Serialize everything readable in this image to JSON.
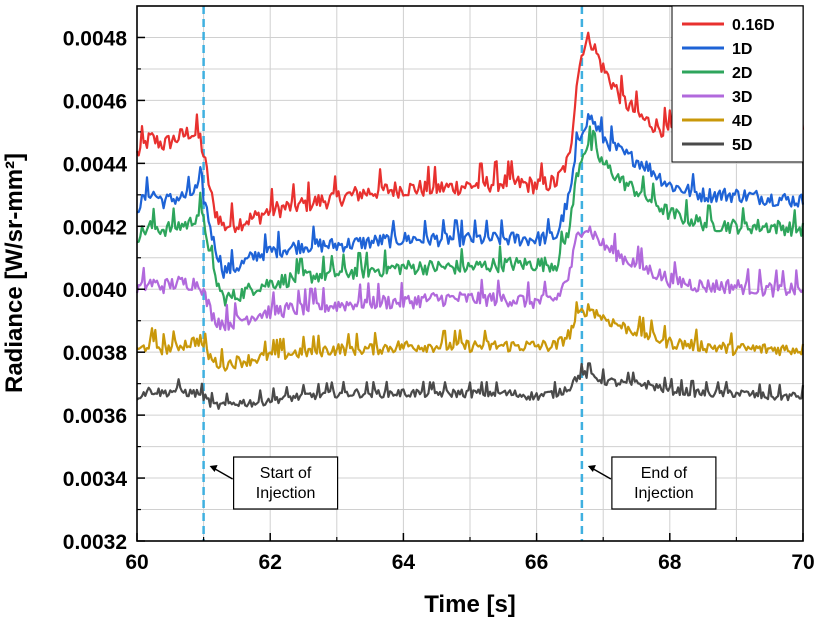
{
  "chart_data": {
    "type": "line",
    "xlabel": "Time [s]",
    "ylabel": "Radiance [W/sr-mm²]",
    "xlim": [
      60,
      70
    ],
    "ylim": [
      0.0032,
      0.0049
    ],
    "xticks": [
      "60",
      "62",
      "64",
      "66",
      "68",
      "70"
    ],
    "yticks": [
      "0.0032",
      "0.0034",
      "0.0036",
      "0.0038",
      "0.0040",
      "0.0042",
      "0.0044",
      "0.0046",
      "0.0048"
    ],
    "grid": true,
    "legend_position": "top-right",
    "markers": [
      {
        "x": 61.0,
        "label_lines": [
          "Start of",
          "Injection"
        ],
        "color": "#3fb0e0"
      },
      {
        "x": 66.68,
        "label_lines": [
          "End of",
          "Injection"
        ],
        "color": "#3fb0e0"
      }
    ],
    "series": [
      {
        "name": "0.16D",
        "color": "#e8312f",
        "points": [
          [
            60.0,
            0.00443
          ],
          [
            60.2,
            0.00448
          ],
          [
            60.4,
            0.00446
          ],
          [
            60.6,
            0.00448
          ],
          [
            60.8,
            0.0045
          ],
          [
            60.95,
            0.00448
          ],
          [
            61.05,
            0.00437
          ],
          [
            61.15,
            0.00426
          ],
          [
            61.3,
            0.0042
          ],
          [
            61.5,
            0.00421
          ],
          [
            61.8,
            0.00423
          ],
          [
            62.0,
            0.00425
          ],
          [
            62.5,
            0.00427
          ],
          [
            63.0,
            0.00429
          ],
          [
            63.5,
            0.00431
          ],
          [
            64.0,
            0.00432
          ],
          [
            64.5,
            0.00432
          ],
          [
            65.0,
            0.00433
          ],
          [
            65.5,
            0.00434
          ],
          [
            66.0,
            0.00433
          ],
          [
            66.3,
            0.00434
          ],
          [
            66.5,
            0.00442
          ],
          [
            66.6,
            0.00466
          ],
          [
            66.7,
            0.00477
          ],
          [
            66.8,
            0.0048
          ],
          [
            67.0,
            0.0047
          ],
          [
            67.3,
            0.0046
          ],
          [
            67.6,
            0.00454
          ],
          [
            68.0,
            0.0045
          ],
          [
            68.5,
            0.00448
          ],
          [
            69.0,
            0.00448
          ],
          [
            69.5,
            0.00448
          ],
          [
            70.0,
            0.00449
          ]
        ]
      },
      {
        "name": "1D",
        "color": "#1e63d6",
        "points": [
          [
            60.0,
            0.00426
          ],
          [
            60.2,
            0.00431
          ],
          [
            60.4,
            0.00428
          ],
          [
            60.6,
            0.00429
          ],
          [
            60.8,
            0.0043
          ],
          [
            60.95,
            0.00433
          ],
          [
            61.05,
            0.00425
          ],
          [
            61.15,
            0.00415
          ],
          [
            61.3,
            0.00406
          ],
          [
            61.5,
            0.00407
          ],
          [
            61.8,
            0.00411
          ],
          [
            62.0,
            0.00412
          ],
          [
            62.5,
            0.00414
          ],
          [
            63.0,
            0.00414
          ],
          [
            63.5,
            0.00415
          ],
          [
            64.0,
            0.00416
          ],
          [
            64.5,
            0.00416
          ],
          [
            65.0,
            0.00416
          ],
          [
            65.5,
            0.00416
          ],
          [
            66.0,
            0.00416
          ],
          [
            66.3,
            0.00417
          ],
          [
            66.5,
            0.0043
          ],
          [
            66.6,
            0.00444
          ],
          [
            66.7,
            0.00452
          ],
          [
            66.8,
            0.00455
          ],
          [
            67.0,
            0.00448
          ],
          [
            67.3,
            0.00443
          ],
          [
            67.6,
            0.0044
          ],
          [
            68.0,
            0.00433
          ],
          [
            68.5,
            0.0043
          ],
          [
            69.0,
            0.0043
          ],
          [
            69.5,
            0.00429
          ],
          [
            70.0,
            0.00428
          ]
        ]
      },
      {
        "name": "2D",
        "color": "#2ea55c",
        "points": [
          [
            60.0,
            0.00417
          ],
          [
            60.2,
            0.0042
          ],
          [
            60.4,
            0.00419
          ],
          [
            60.6,
            0.0042
          ],
          [
            60.8,
            0.00421
          ],
          [
            60.95,
            0.00425
          ],
          [
            61.05,
            0.00417
          ],
          [
            61.15,
            0.00405
          ],
          [
            61.3,
            0.00397
          ],
          [
            61.5,
            0.00398
          ],
          [
            61.8,
            0.00401
          ],
          [
            62.0,
            0.00402
          ],
          [
            62.5,
            0.00404
          ],
          [
            63.0,
            0.00405
          ],
          [
            63.5,
            0.00406
          ],
          [
            64.0,
            0.00407
          ],
          [
            64.5,
            0.00407
          ],
          [
            65.0,
            0.00407
          ],
          [
            65.5,
            0.00408
          ],
          [
            66.0,
            0.00408
          ],
          [
            66.3,
            0.00408
          ],
          [
            66.5,
            0.0042
          ],
          [
            66.6,
            0.00436
          ],
          [
            66.7,
            0.00444
          ],
          [
            66.8,
            0.00446
          ],
          [
            67.0,
            0.0044
          ],
          [
            67.3,
            0.00434
          ],
          [
            67.6,
            0.0043
          ],
          [
            68.0,
            0.00424
          ],
          [
            68.5,
            0.00421
          ],
          [
            69.0,
            0.0042
          ],
          [
            69.5,
            0.0042
          ],
          [
            70.0,
            0.00419
          ]
        ]
      },
      {
        "name": "3D",
        "color": "#b169dc",
        "points": [
          [
            60.0,
            0.004
          ],
          [
            60.2,
            0.00402
          ],
          [
            60.4,
            0.00401
          ],
          [
            60.6,
            0.00402
          ],
          [
            60.8,
            0.00402
          ],
          [
            60.95,
            0.00402
          ],
          [
            61.05,
            0.00396
          ],
          [
            61.15,
            0.00391
          ],
          [
            61.3,
            0.00389
          ],
          [
            61.5,
            0.0039
          ],
          [
            61.8,
            0.00392
          ],
          [
            62.0,
            0.00393
          ],
          [
            62.5,
            0.00394
          ],
          [
            63.0,
            0.00395
          ],
          [
            63.5,
            0.00396
          ],
          [
            64.0,
            0.00396
          ],
          [
            64.5,
            0.00397
          ],
          [
            65.0,
            0.00397
          ],
          [
            65.5,
            0.00397
          ],
          [
            66.0,
            0.00396
          ],
          [
            66.3,
            0.00397
          ],
          [
            66.5,
            0.00405
          ],
          [
            66.6,
            0.00416
          ],
          [
            66.7,
            0.0042
          ],
          [
            66.8,
            0.00419
          ],
          [
            67.0,
            0.00414
          ],
          [
            67.3,
            0.0041
          ],
          [
            67.6,
            0.00407
          ],
          [
            68.0,
            0.00403
          ],
          [
            68.5,
            0.00401
          ],
          [
            69.0,
            0.00401
          ],
          [
            69.5,
            0.004
          ],
          [
            70.0,
            0.004
          ]
        ]
      },
      {
        "name": "4D",
        "color": "#c9980a",
        "points": [
          [
            60.0,
            0.0038
          ],
          [
            60.2,
            0.00383
          ],
          [
            60.4,
            0.00381
          ],
          [
            60.6,
            0.00382
          ],
          [
            60.8,
            0.00383
          ],
          [
            60.95,
            0.00384
          ],
          [
            61.05,
            0.0038
          ],
          [
            61.15,
            0.00377
          ],
          [
            61.3,
            0.00376
          ],
          [
            61.5,
            0.00377
          ],
          [
            61.8,
            0.00378
          ],
          [
            62.0,
            0.00379
          ],
          [
            62.5,
            0.0038
          ],
          [
            63.0,
            0.00381
          ],
          [
            63.5,
            0.00381
          ],
          [
            64.0,
            0.00382
          ],
          [
            64.5,
            0.00382
          ],
          [
            65.0,
            0.00382
          ],
          [
            65.5,
            0.00382
          ],
          [
            66.0,
            0.00382
          ],
          [
            66.3,
            0.00382
          ],
          [
            66.5,
            0.00386
          ],
          [
            66.6,
            0.00391
          ],
          [
            66.7,
            0.00393
          ],
          [
            66.8,
            0.00394
          ],
          [
            67.0,
            0.00391
          ],
          [
            67.3,
            0.00388
          ],
          [
            67.6,
            0.00386
          ],
          [
            68.0,
            0.00383
          ],
          [
            68.5,
            0.00382
          ],
          [
            69.0,
            0.00381
          ],
          [
            69.5,
            0.00381
          ],
          [
            70.0,
            0.00381
          ]
        ]
      },
      {
        "name": "5D",
        "color": "#4a4a4a",
        "points": [
          [
            60.0,
            0.00366
          ],
          [
            60.2,
            0.00368
          ],
          [
            60.4,
            0.00367
          ],
          [
            60.6,
            0.00368
          ],
          [
            60.8,
            0.00367
          ],
          [
            60.95,
            0.00367
          ],
          [
            61.05,
            0.00365
          ],
          [
            61.15,
            0.00363
          ],
          [
            61.3,
            0.00363
          ],
          [
            61.5,
            0.00364
          ],
          [
            61.8,
            0.00364
          ],
          [
            62.0,
            0.00365
          ],
          [
            62.5,
            0.00366
          ],
          [
            63.0,
            0.00367
          ],
          [
            63.5,
            0.00367
          ],
          [
            64.0,
            0.00367
          ],
          [
            64.5,
            0.00367
          ],
          [
            65.0,
            0.00367
          ],
          [
            65.5,
            0.00367
          ],
          [
            66.0,
            0.00366
          ],
          [
            66.3,
            0.00367
          ],
          [
            66.5,
            0.00369
          ],
          [
            66.6,
            0.00372
          ],
          [
            66.7,
            0.00373
          ],
          [
            66.8,
            0.00373
          ],
          [
            67.0,
            0.00371
          ],
          [
            67.3,
            0.0037
          ],
          [
            67.6,
            0.0037
          ],
          [
            68.0,
            0.00368
          ],
          [
            68.5,
            0.00367
          ],
          [
            69.0,
            0.00367
          ],
          [
            69.5,
            0.00366
          ],
          [
            70.0,
            0.00366
          ]
        ]
      }
    ]
  }
}
